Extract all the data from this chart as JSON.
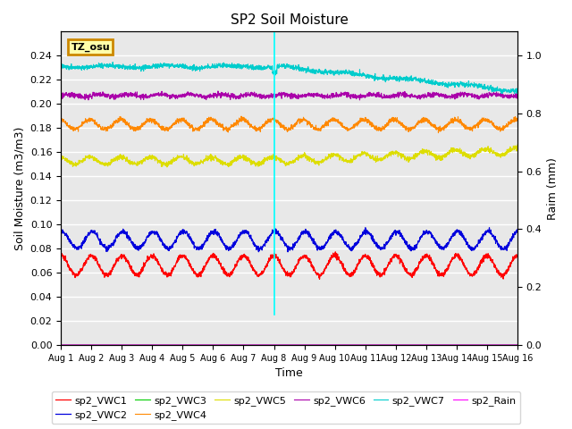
{
  "title": "SP2 Soil Moisture",
  "xlabel": "Time",
  "ylabel_left": "Soil Moisture (m3/m3)",
  "ylabel_right": "Raim (mm)",
  "y_ticks_left": [
    0.0,
    0.02,
    0.04,
    0.06,
    0.08,
    0.1,
    0.12,
    0.14,
    0.16,
    0.18,
    0.2,
    0.22,
    0.24
  ],
  "y_ticks_right": [
    0.0,
    0.2,
    0.4,
    0.6,
    0.8,
    1.0
  ],
  "ylim_left": [
    0.0,
    0.26
  ],
  "ylim_right": [
    0.0,
    1.0833
  ],
  "bg_color": "#e8e8e8",
  "series": [
    {
      "name": "sp2_VWC1",
      "color": "#ff0000",
      "base": 0.066,
      "amp": 0.008,
      "period": 1.0,
      "phase": 0.25,
      "noise": 0.001
    },
    {
      "name": "sp2_VWC2",
      "color": "#0000dd",
      "base": 0.087,
      "amp": 0.007,
      "period": 1.0,
      "phase": 0.22,
      "noise": 0.001
    },
    {
      "name": "sp2_VWC3",
      "color": "#00cc00",
      "base": 0.0,
      "amp": 0.0,
      "period": 1.0,
      "phase": 0.0,
      "noise": 0.0
    },
    {
      "name": "sp2_VWC4",
      "color": "#ff8800",
      "base": 0.183,
      "amp": 0.004,
      "period": 1.0,
      "phase": 0.3,
      "noise": 0.001
    },
    {
      "name": "sp2_VWC5",
      "color": "#dddd00",
      "base": 0.153,
      "amp": 0.003,
      "period": 1.0,
      "phase": 0.3,
      "noise": 0.001
    },
    {
      "name": "sp2_VWC6",
      "color": "#aa00aa",
      "base": 0.207,
      "amp": 0.001,
      "period": 1.0,
      "phase": 0.0,
      "noise": 0.001
    },
    {
      "name": "sp2_VWC7",
      "color": "#00cccc",
      "base": 0.231,
      "amp": 0.001,
      "period": 2.0,
      "phase": 0.0,
      "noise": 0.001
    }
  ],
  "rain_color": "#ff00ff",
  "vline_day": 8.0,
  "vline_color": "#00ffff",
  "tz_label": "TZ_osu",
  "tz_bg": "#ffffaa",
  "tz_border": "#cc8800",
  "x_tick_labels": [
    "Aug 1",
    "Aug 2",
    "Aug 3",
    "Aug 4",
    "Aug 5",
    "Aug 6",
    "Aug 7",
    "Aug 8",
    "Aug 9",
    "Aug 10",
    "Aug 11",
    "Aug 12",
    "Aug 13",
    "Aug 14",
    "Aug 15",
    "Aug 16"
  ]
}
